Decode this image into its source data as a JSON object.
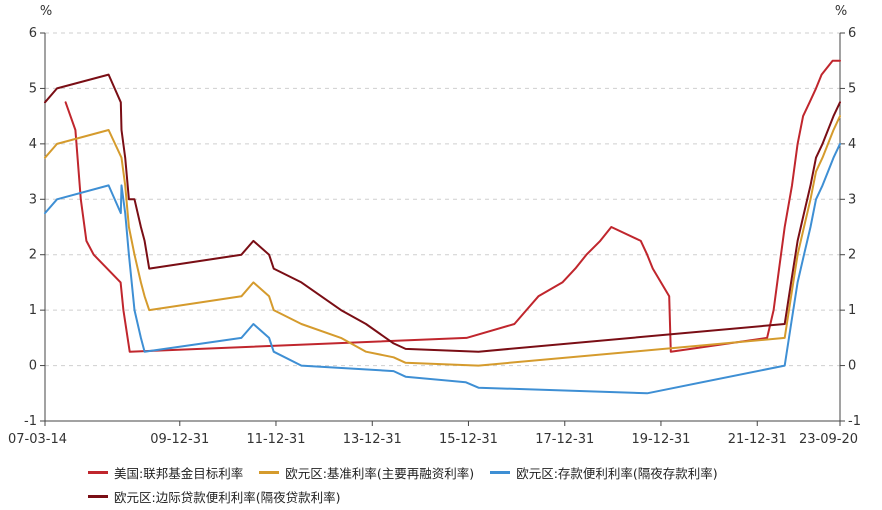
{
  "chart_data": {
    "type": "line",
    "unit_left": "%",
    "unit_right": "%",
    "ylim": [
      -1,
      6
    ],
    "y_ticks": [
      -1,
      0,
      1,
      2,
      3,
      4,
      5,
      6
    ],
    "x_start": "2007-03-14",
    "x_end": "2023-09-20",
    "x_tick_labels": [
      {
        "date": "2007-03-14",
        "label": "07-03-14"
      },
      {
        "date": "2009-12-31",
        "label": "09-12-31"
      },
      {
        "date": "2011-12-31",
        "label": "11-12-31"
      },
      {
        "date": "2013-12-31",
        "label": "13-12-31"
      },
      {
        "date": "2015-12-31",
        "label": "15-12-31"
      },
      {
        "date": "2017-12-31",
        "label": "17-12-31"
      },
      {
        "date": "2019-12-31",
        "label": "19-12-31"
      },
      {
        "date": "2021-12-31",
        "label": "21-12-31"
      },
      {
        "date": "2023-09-20",
        "label": "23-09-20"
      }
    ],
    "grid": "horizontal-dashed",
    "legend_position": "bottom",
    "series": [
      {
        "name": "美国:联邦基金目标利率",
        "color": "#c0262d",
        "points": [
          [
            "2007-08-17",
            4.75
          ],
          [
            "2007-10-31",
            4.25
          ],
          [
            "2007-12-11",
            3.0
          ],
          [
            "2008-01-22",
            2.25
          ],
          [
            "2008-03-18",
            2.0
          ],
          [
            "2008-10-08",
            1.5
          ],
          [
            "2008-10-29",
            1.0
          ],
          [
            "2008-12-16",
            0.25
          ],
          [
            "2015-12-16",
            0.5
          ],
          [
            "2016-12-14",
            0.75
          ],
          [
            "2017-03-15",
            1.0
          ],
          [
            "2017-06-14",
            1.25
          ],
          [
            "2017-12-13",
            1.5
          ],
          [
            "2018-03-21",
            1.75
          ],
          [
            "2018-06-13",
            2.0
          ],
          [
            "2018-09-26",
            2.25
          ],
          [
            "2018-12-19",
            2.5
          ],
          [
            "2019-07-31",
            2.25
          ],
          [
            "2019-09-18",
            2.0
          ],
          [
            "2019-10-30",
            1.75
          ],
          [
            "2020-03-03",
            1.25
          ],
          [
            "2020-03-15",
            0.25
          ],
          [
            "2022-03-16",
            0.5
          ],
          [
            "2022-05-04",
            1.0
          ],
          [
            "2022-06-15",
            1.75
          ],
          [
            "2022-07-27",
            2.5
          ],
          [
            "2022-09-21",
            3.25
          ],
          [
            "2022-11-02",
            4.0
          ],
          [
            "2022-12-14",
            4.5
          ],
          [
            "2023-02-01",
            4.75
          ],
          [
            "2023-03-22",
            5.0
          ],
          [
            "2023-05-03",
            5.25
          ],
          [
            "2023-07-26",
            5.5
          ],
          [
            "2023-09-20",
            5.5
          ]
        ]
      },
      {
        "name": "欧元区:基准利率(主要再融资利率)",
        "color": "#d59b2d",
        "points": [
          [
            "2007-03-14",
            3.75
          ],
          [
            "2007-06-13",
            4.0
          ],
          [
            "2008-07-09",
            4.25
          ],
          [
            "2008-10-15",
            3.75
          ],
          [
            "2008-11-12",
            3.25
          ],
          [
            "2008-12-10",
            2.5
          ],
          [
            "2009-01-21",
            2.0
          ],
          [
            "2009-03-11",
            1.5
          ],
          [
            "2009-04-08",
            1.25
          ],
          [
            "2009-05-13",
            1.0
          ],
          [
            "2011-04-13",
            1.25
          ],
          [
            "2011-07-13",
            1.5
          ],
          [
            "2011-11-09",
            1.25
          ],
          [
            "2011-12-14",
            1.0
          ],
          [
            "2012-07-11",
            0.75
          ],
          [
            "2013-05-08",
            0.5
          ],
          [
            "2013-11-13",
            0.25
          ],
          [
            "2014-06-11",
            0.15
          ],
          [
            "2014-09-10",
            0.05
          ],
          [
            "2016-03-16",
            0.0
          ],
          [
            "2022-07-27",
            0.5
          ],
          [
            "2022-09-14",
            1.25
          ],
          [
            "2022-11-02",
            2.0
          ],
          [
            "2022-12-21",
            2.5
          ],
          [
            "2023-02-08",
            3.0
          ],
          [
            "2023-03-22",
            3.5
          ],
          [
            "2023-05-10",
            3.75
          ],
          [
            "2023-06-21",
            4.0
          ],
          [
            "2023-08-02",
            4.25
          ],
          [
            "2023-09-20",
            4.5
          ]
        ]
      },
      {
        "name": "欧元区:存款便利利率(隔夜存款利率)",
        "color": "#3e8fd4",
        "points": [
          [
            "2007-03-14",
            2.75
          ],
          [
            "2007-06-13",
            3.0
          ],
          [
            "2008-07-09",
            3.25
          ],
          [
            "2008-10-09",
            2.75
          ],
          [
            "2008-10-15",
            3.25
          ],
          [
            "2008-11-12",
            2.75
          ],
          [
            "2008-12-10",
            2.0
          ],
          [
            "2009-01-21",
            1.0
          ],
          [
            "2009-03-11",
            0.5
          ],
          [
            "2009-04-08",
            0.25
          ],
          [
            "2011-04-13",
            0.5
          ],
          [
            "2011-07-13",
            0.75
          ],
          [
            "2011-11-09",
            0.5
          ],
          [
            "2011-12-14",
            0.25
          ],
          [
            "2012-07-11",
            0.0
          ],
          [
            "2014-06-11",
            -0.1
          ],
          [
            "2014-09-10",
            -0.2
          ],
          [
            "2015-12-09",
            -0.3
          ],
          [
            "2016-03-16",
            -0.4
          ],
          [
            "2019-09-18",
            -0.5
          ],
          [
            "2022-07-27",
            0.0
          ],
          [
            "2022-09-14",
            0.75
          ],
          [
            "2022-11-02",
            1.5
          ],
          [
            "2022-12-21",
            2.0
          ],
          [
            "2023-02-08",
            2.5
          ],
          [
            "2023-03-22",
            3.0
          ],
          [
            "2023-05-10",
            3.25
          ],
          [
            "2023-06-21",
            3.5
          ],
          [
            "2023-08-02",
            3.75
          ],
          [
            "2023-09-20",
            4.0
          ]
        ]
      },
      {
        "name": "欧元区:边际贷款便利利率(隔夜贷款利率)",
        "color": "#7a0e15",
        "points": [
          [
            "2007-03-14",
            4.75
          ],
          [
            "2007-06-13",
            5.0
          ],
          [
            "2008-07-09",
            5.25
          ],
          [
            "2008-10-09",
            4.75
          ],
          [
            "2008-10-15",
            4.25
          ],
          [
            "2008-11-12",
            3.75
          ],
          [
            "2008-12-10",
            3.0
          ],
          [
            "2009-01-21",
            3.0
          ],
          [
            "2009-03-11",
            2.5
          ],
          [
            "2009-04-08",
            2.25
          ],
          [
            "2009-05-13",
            1.75
          ],
          [
            "2011-04-13",
            2.0
          ],
          [
            "2011-07-13",
            2.25
          ],
          [
            "2011-11-09",
            2.0
          ],
          [
            "2011-12-14",
            1.75
          ],
          [
            "2012-07-11",
            1.5
          ],
          [
            "2013-05-08",
            1.0
          ],
          [
            "2013-11-13",
            0.75
          ],
          [
            "2014-06-11",
            0.4
          ],
          [
            "2014-09-10",
            0.3
          ],
          [
            "2016-03-16",
            0.25
          ],
          [
            "2022-07-27",
            0.75
          ],
          [
            "2022-09-14",
            1.5
          ],
          [
            "2022-11-02",
            2.25
          ],
          [
            "2022-12-21",
            2.75
          ],
          [
            "2023-02-08",
            3.25
          ],
          [
            "2023-03-22",
            3.75
          ],
          [
            "2023-05-10",
            4.0
          ],
          [
            "2023-06-21",
            4.25
          ],
          [
            "2023-08-02",
            4.5
          ],
          [
            "2023-09-20",
            4.75
          ]
        ]
      }
    ]
  }
}
